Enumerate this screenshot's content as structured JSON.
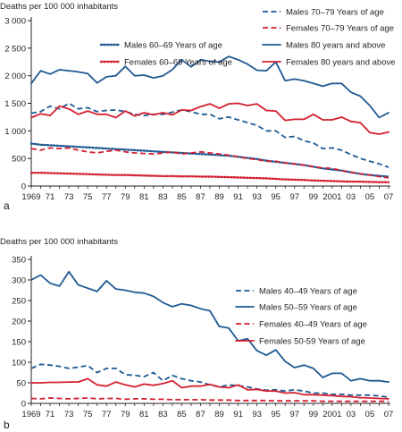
{
  "colors": {
    "blue": "#1f5a93",
    "red": "#d4202f",
    "axis": "#231f20"
  },
  "chart_data": [
    {
      "type": "line",
      "panel_label": "a",
      "ylabel": "Deaths per 100 000 inhabitants",
      "xlabel": "",
      "ylim": [
        0,
        3000
      ],
      "xlim": [
        1969,
        2007
      ],
      "yticks": [
        0,
        500,
        1000,
        1500,
        2000,
        2500,
        3000
      ],
      "ytick_labels": [
        "0",
        "500",
        "1 000",
        "1 500",
        "2 000",
        "2 500",
        "3 000"
      ],
      "xticks": [
        1969,
        1971,
        1973,
        1975,
        1977,
        1979,
        1981,
        1983,
        1985,
        1987,
        1989,
        1991,
        1993,
        1995,
        1997,
        1999,
        2001,
        2003,
        2005,
        2007
      ],
      "xtick_labels": [
        "1969",
        "71",
        "73",
        "75",
        "77",
        "79",
        "81",
        "83",
        "85",
        "87",
        "89",
        "91",
        "93",
        "95",
        "97",
        "99",
        "2001",
        "03",
        "05",
        "07"
      ],
      "grid": false,
      "legend": [
        {
          "text": "Males 60–69 Years of age",
          "series": 0
        },
        {
          "text": "Females 60–69 Years of age",
          "series": 1
        },
        {
          "text": "Males 70–79 Years of age",
          "series": 2
        },
        {
          "text": "Females 70–79 Years of age",
          "series": 3
        },
        {
          "text": "Males 80 years and above",
          "series": 4
        },
        {
          "text": "Females 80 years and above",
          "series": 5
        }
      ],
      "series": [
        {
          "name": "Males 60–69 Years of age",
          "color": "#1f5a93",
          "style": "dotted",
          "x": [
            1969,
            1970,
            1971,
            1972,
            1973,
            1974,
            1975,
            1976,
            1977,
            1978,
            1979,
            1980,
            1981,
            1982,
            1983,
            1984,
            1985,
            1986,
            1987,
            1988,
            1989,
            1990,
            1991,
            1992,
            1993,
            1994,
            1995,
            1996,
            1997,
            1998,
            1999,
            2000,
            2001,
            2002,
            2003,
            2004,
            2005,
            2006,
            2007
          ],
          "values": [
            770,
            750,
            740,
            730,
            720,
            710,
            700,
            690,
            680,
            670,
            660,
            650,
            640,
            630,
            620,
            610,
            600,
            590,
            580,
            570,
            560,
            550,
            530,
            510,
            490,
            460,
            440,
            420,
            400,
            380,
            350,
            320,
            300,
            280,
            250,
            220,
            200,
            185,
            170
          ]
        },
        {
          "name": "Females 60–69 Years of age",
          "color": "#d4202f",
          "style": "dotted",
          "x": [
            1969,
            1970,
            1971,
            1972,
            1973,
            1974,
            1975,
            1976,
            1977,
            1978,
            1979,
            1980,
            1981,
            1982,
            1983,
            1984,
            1985,
            1986,
            1987,
            1988,
            1989,
            1990,
            1991,
            1992,
            1993,
            1994,
            1995,
            1996,
            1997,
            1998,
            1999,
            2000,
            2001,
            2002,
            2003,
            2004,
            2005,
            2006,
            2007
          ],
          "values": [
            240,
            240,
            235,
            230,
            225,
            220,
            215,
            210,
            205,
            200,
            200,
            195,
            190,
            185,
            180,
            180,
            175,
            175,
            170,
            170,
            165,
            160,
            155,
            150,
            145,
            140,
            130,
            120,
            115,
            110,
            100,
            95,
            90,
            85,
            80,
            80,
            75,
            70,
            70
          ]
        },
        {
          "name": "Males 70–79 Years of age",
          "color": "#1f5a93",
          "style": "dashed",
          "x": [
            1969,
            1970,
            1971,
            1972,
            1973,
            1974,
            1975,
            1976,
            1977,
            1978,
            1979,
            1980,
            1981,
            1982,
            1983,
            1984,
            1985,
            1986,
            1987,
            1988,
            1989,
            1990,
            1991,
            1992,
            1993,
            1994,
            1995,
            1996,
            1997,
            1998,
            1999,
            2000,
            2001,
            2002,
            2003,
            2004,
            2005,
            2006,
            2007
          ],
          "values": [
            1320,
            1350,
            1450,
            1400,
            1500,
            1400,
            1420,
            1350,
            1370,
            1380,
            1350,
            1300,
            1280,
            1300,
            1300,
            1340,
            1380,
            1350,
            1300,
            1300,
            1220,
            1250,
            1200,
            1150,
            1100,
            1000,
            1000,
            880,
            900,
            820,
            780,
            680,
            690,
            650,
            570,
            500,
            450,
            400,
            340
          ]
        },
        {
          "name": "Females 70–79 Years of age",
          "color": "#d4202f",
          "style": "dashed",
          "x": [
            1969,
            1970,
            1971,
            1972,
            1973,
            1974,
            1975,
            1976,
            1977,
            1978,
            1979,
            1980,
            1981,
            1982,
            1983,
            1984,
            1985,
            1986,
            1987,
            1988,
            1989,
            1990,
            1991,
            1992,
            1993,
            1994,
            1995,
            1996,
            1997,
            1998,
            1999,
            2000,
            2001,
            2002,
            2003,
            2004,
            2005,
            2006,
            2007
          ],
          "values": [
            680,
            650,
            690,
            680,
            690,
            650,
            620,
            600,
            630,
            650,
            620,
            600,
            590,
            580,
            600,
            620,
            580,
            600,
            620,
            600,
            580,
            560,
            530,
            500,
            480,
            450,
            450,
            420,
            400,
            380,
            350,
            330,
            320,
            280,
            250,
            220,
            200,
            170,
            150
          ]
        },
        {
          "name": "Males 80 years and above",
          "color": "#1f5a93",
          "style": "solid",
          "x": [
            1969,
            1970,
            1971,
            1972,
            1973,
            1974,
            1975,
            1976,
            1977,
            1978,
            1979,
            1980,
            1981,
            1982,
            1983,
            1984,
            1985,
            1986,
            1987,
            1988,
            1989,
            1990,
            1991,
            1992,
            1993,
            1994,
            1995,
            1996,
            1997,
            1998,
            1999,
            2000,
            2001,
            2002,
            2003,
            2004,
            2005,
            2006,
            2007
          ],
          "values": [
            1860,
            2090,
            2030,
            2110,
            2090,
            2070,
            2040,
            1870,
            1980,
            2000,
            2170,
            2000,
            2010,
            1960,
            2000,
            2110,
            2290,
            2160,
            2290,
            2260,
            2250,
            2350,
            2290,
            2210,
            2100,
            2090,
            2250,
            1910,
            1940,
            1910,
            1860,
            1810,
            1860,
            1860,
            1700,
            1630,
            1460,
            1240,
            1330
          ]
        },
        {
          "name": "Females 80 years and above",
          "color": "#d4202f",
          "style": "solid",
          "x": [
            1969,
            1970,
            1971,
            1972,
            1973,
            1974,
            1975,
            1976,
            1977,
            1978,
            1979,
            1980,
            1981,
            1982,
            1983,
            1984,
            1985,
            1986,
            1987,
            1988,
            1989,
            1990,
            1991,
            1992,
            1993,
            1994,
            1995,
            1996,
            1997,
            1998,
            1999,
            2000,
            2001,
            2002,
            2003,
            2004,
            2005,
            2006,
            2007
          ],
          "values": [
            1240,
            1310,
            1280,
            1450,
            1400,
            1300,
            1360,
            1300,
            1300,
            1240,
            1360,
            1270,
            1330,
            1290,
            1330,
            1290,
            1380,
            1370,
            1440,
            1490,
            1410,
            1490,
            1500,
            1460,
            1490,
            1370,
            1360,
            1190,
            1210,
            1210,
            1300,
            1200,
            1200,
            1250,
            1170,
            1150,
            970,
            940,
            980
          ]
        }
      ]
    },
    {
      "type": "line",
      "panel_label": "b",
      "ylabel": "Deaths per 100 000 inhabitants",
      "xlabel": "",
      "ylim": [
        0,
        350
      ],
      "xlim": [
        1969,
        2007
      ],
      "yticks": [
        0,
        50,
        100,
        150,
        200,
        250,
        300,
        350
      ],
      "ytick_labels": [
        "0",
        "50",
        "100",
        "150",
        "200",
        "250",
        "300",
        "350"
      ],
      "xticks": [
        1969,
        1971,
        1973,
        1975,
        1977,
        1979,
        1981,
        1983,
        1985,
        1987,
        1989,
        1991,
        1993,
        1995,
        1997,
        1999,
        2001,
        2003,
        2005,
        2007
      ],
      "xtick_labels": [
        "1969",
        "71",
        "73",
        "75",
        "77",
        "79",
        "81",
        "83",
        "85",
        "87",
        "89",
        "91",
        "93",
        "95",
        "97",
        "99",
        "2001",
        "03",
        "05",
        "07"
      ],
      "grid": false,
      "legend": [
        {
          "text": "Males  40–49  Years of age",
          "series": 0
        },
        {
          "text": "Males  50–59  Years of age",
          "series": 1
        },
        {
          "text": "Females  40–49  Years of age",
          "series": 2
        },
        {
          "text": "Females  50-59   Years of age",
          "series": 3
        }
      ],
      "series": [
        {
          "name": "Males  40–49  Years of age",
          "color": "#1f5a93",
          "style": "dashed",
          "x": [
            1969,
            1970,
            1971,
            1972,
            1973,
            1974,
            1975,
            1976,
            1977,
            1978,
            1979,
            1980,
            1981,
            1982,
            1983,
            1984,
            1985,
            1986,
            1987,
            1988,
            1989,
            1990,
            1991,
            1992,
            1993,
            1994,
            1995,
            1996,
            1997,
            1998,
            1999,
            2000,
            2001,
            2002,
            2003,
            2004,
            2005,
            2006,
            2007
          ],
          "values": [
            85,
            95,
            93,
            90,
            85,
            88,
            92,
            75,
            85,
            85,
            70,
            68,
            65,
            75,
            55,
            68,
            60,
            55,
            52,
            45,
            40,
            45,
            43,
            40,
            35,
            32,
            33,
            30,
            33,
            30,
            25,
            25,
            22,
            22,
            20,
            20,
            20,
            18,
            15
          ]
        },
        {
          "name": "Males  50–59  Years of age",
          "color": "#1f5a93",
          "style": "solid",
          "x": [
            1969,
            1970,
            1971,
            1972,
            1973,
            1974,
            1975,
            1976,
            1977,
            1978,
            1979,
            1980,
            1981,
            1982,
            1983,
            1984,
            1985,
            1986,
            1987,
            1988,
            1989,
            1990,
            1991,
            1992,
            1993,
            1994,
            1995,
            1996,
            1997,
            1998,
            1999,
            2000,
            2001,
            2002,
            2003,
            2004,
            2005,
            2006,
            2007
          ],
          "values": [
            300,
            312,
            292,
            285,
            320,
            288,
            280,
            272,
            298,
            278,
            275,
            270,
            268,
            260,
            245,
            235,
            242,
            238,
            230,
            225,
            187,
            183,
            152,
            157,
            128,
            117,
            130,
            102,
            87,
            93,
            85,
            63,
            73,
            73,
            55,
            60,
            55,
            55,
            52
          ]
        },
        {
          "name": "Females  40–49  Years of age",
          "color": "#d4202f",
          "style": "dashed",
          "x": [
            1969,
            1970,
            1971,
            1972,
            1973,
            1974,
            1975,
            1976,
            1977,
            1978,
            1979,
            1980,
            1981,
            1982,
            1983,
            1984,
            1985,
            1986,
            1987,
            1988,
            1989,
            1990,
            1991,
            1992,
            1993,
            1994,
            1995,
            1996,
            1997,
            1998,
            1999,
            2000,
            2001,
            2002,
            2003,
            2004,
            2005,
            2006,
            2007
          ],
          "values": [
            12,
            11,
            13,
            12,
            11,
            12,
            13,
            11,
            12,
            12,
            10,
            11,
            11,
            10,
            10,
            9,
            9,
            9,
            9,
            8,
            8,
            8,
            7,
            7,
            7,
            7,
            6,
            6,
            6,
            6,
            6,
            5,
            5,
            5,
            5,
            5,
            5,
            5,
            5
          ]
        },
        {
          "name": "Females  50-59   Years of age",
          "color": "#d4202f",
          "style": "solid",
          "x": [
            1969,
            1970,
            1971,
            1972,
            1973,
            1974,
            1975,
            1976,
            1977,
            1978,
            1979,
            1980,
            1981,
            1982,
            1983,
            1984,
            1985,
            1986,
            1987,
            1988,
            1989,
            1990,
            1991,
            1992,
            1993,
            1994,
            1995,
            1996,
            1997,
            1998,
            1999,
            2000,
            2001,
            2002,
            2003,
            2004,
            2005,
            2006,
            2007
          ],
          "values": [
            50,
            50,
            51,
            51,
            52,
            52,
            60,
            45,
            42,
            52,
            45,
            40,
            47,
            44,
            48,
            55,
            38,
            42,
            42,
            46,
            40,
            38,
            45,
            33,
            34,
            30,
            30,
            25,
            26,
            21,
            21,
            20,
            19,
            17,
            16,
            14,
            13,
            12,
            11
          ]
        }
      ]
    }
  ]
}
